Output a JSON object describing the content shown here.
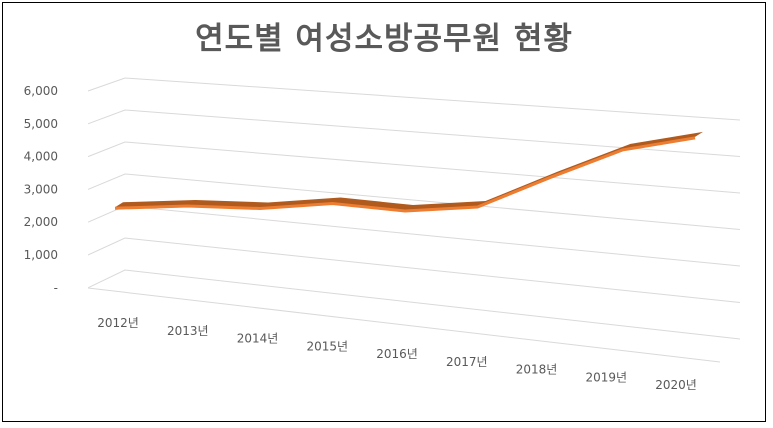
{
  "chart_data": {
    "type": "line",
    "subtype": "3d-line",
    "title": "연도별 여성소방공무원 현황",
    "xlabel": "",
    "ylabel": "",
    "categories": [
      "2012년",
      "2013년",
      "2014년",
      "2015년",
      "2016년",
      "2017년",
      "2018년",
      "2019년",
      "2020년"
    ],
    "series": [
      {
        "name": "여성소방공무원",
        "values": [
          2400,
          2600,
          2650,
          2900,
          2800,
          3000,
          3800,
          4500,
          4800
        ]
      }
    ],
    "ylim": [
      0,
      6000
    ],
    "yticks": [
      0,
      1000,
      2000,
      3000,
      4000,
      5000,
      6000
    ],
    "ytick_labels": [
      "-",
      "1,000",
      "2,000",
      "3,000",
      "4,000",
      "5,000",
      "6,000"
    ],
    "grid": true,
    "legend": "none",
    "colors": {
      "line_top": "#b05a1e",
      "line_front": "#ed7d31",
      "grid": "#d9d9d9",
      "text": "#595959"
    }
  }
}
